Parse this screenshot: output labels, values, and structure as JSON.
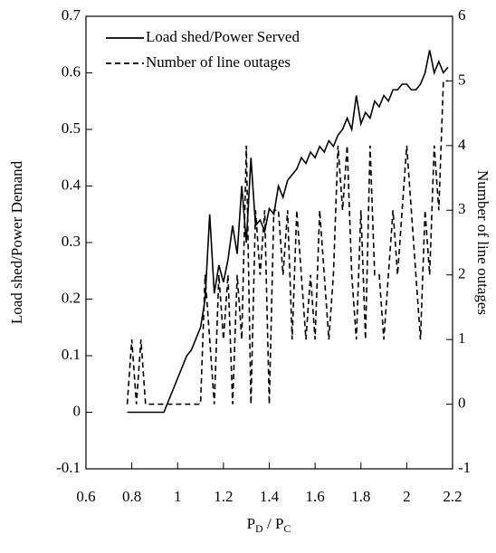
{
  "chart_data": {
    "type": "line",
    "ylabel": "Load shed/Power Demand",
    "y2label": "Number of line outages",
    "xlabel_parts": [
      "P",
      "D",
      " / P",
      "C"
    ],
    "xlim": [
      0.6,
      2.2
    ],
    "xticks": [
      0.6,
      0.8,
      1,
      1.2,
      1.4,
      1.6,
      1.8,
      2,
      2.2
    ],
    "ylim": [
      -0.1,
      0.7
    ],
    "yticks": [
      -0.1,
      0,
      0.1,
      0.2,
      0.3,
      0.4,
      0.5,
      0.6,
      0.7
    ],
    "y2lim": [
      -1,
      6
    ],
    "y2ticks": [
      -1,
      0,
      1,
      2,
      3,
      4,
      5,
      6
    ],
    "legend": "upper left",
    "x": [
      0.78,
      0.8,
      0.82,
      0.84,
      0.86,
      0.88,
      0.9,
      0.92,
      0.94,
      0.96,
      0.98,
      1,
      1.02,
      1.04,
      1.06,
      1.08,
      1.1,
      1.12,
      1.14,
      1.16,
      1.18,
      1.2,
      1.22,
      1.24,
      1.26,
      1.28,
      1.3,
      1.32,
      1.34,
      1.36,
      1.38,
      1.4,
      1.42,
      1.44,
      1.46,
      1.48,
      1.5,
      1.52,
      1.54,
      1.56,
      1.58,
      1.6,
      1.62,
      1.64,
      1.66,
      1.68,
      1.7,
      1.72,
      1.74,
      1.76,
      1.78,
      1.8,
      1.82,
      1.84,
      1.86,
      1.88,
      1.9,
      1.92,
      1.94,
      1.96,
      1.98,
      2,
      2.02,
      2.04,
      2.06,
      2.08,
      2.1,
      2.12,
      2.14,
      2.16,
      2.18
    ],
    "series": [
      {
        "name": "Load shed/Power Served",
        "color": "#000000",
        "line_style": "solid",
        "values": [
          0,
          0,
          0,
          0,
          0,
          0,
          0,
          0,
          0,
          0.02,
          0.04,
          0.06,
          0.08,
          0.1,
          0.11,
          0.13,
          0.15,
          0.2,
          0.35,
          0.21,
          0.26,
          0.23,
          0.27,
          0.33,
          0.28,
          0.4,
          0.3,
          0.45,
          0.33,
          0.34,
          0.32,
          0.36,
          0.35,
          0.4,
          0.38,
          0.41,
          0.42,
          0.43,
          0.45,
          0.44,
          0.46,
          0.45,
          0.47,
          0.46,
          0.48,
          0.47,
          0.49,
          0.5,
          0.52,
          0.5,
          0.56,
          0.51,
          0.53,
          0.52,
          0.55,
          0.54,
          0.56,
          0.55,
          0.57,
          0.57,
          0.58,
          0.58,
          0.57,
          0.57,
          0.58,
          0.6,
          0.64,
          0.6,
          0.62,
          0.6,
          0.61
        ]
      },
      {
        "name": "Number of line outages",
        "color": "#000000",
        "line_style": "dashed",
        "axis": "y2",
        "values": [
          0,
          1,
          0,
          1,
          0,
          0,
          0,
          0,
          0,
          0,
          0,
          0,
          0,
          0,
          0,
          0,
          0,
          2,
          1,
          0,
          2,
          1,
          2,
          0,
          2,
          1,
          4,
          0,
          3,
          2,
          3,
          0,
          3,
          3,
          2,
          3,
          1,
          3,
          2,
          1,
          2,
          1,
          3,
          2,
          1,
          2,
          4,
          3,
          4,
          2,
          1,
          3,
          1,
          4,
          2,
          2,
          1,
          2,
          3,
          2,
          3,
          4,
          3,
          2,
          1,
          3,
          2,
          4,
          3,
          5,
          5
        ]
      }
    ]
  }
}
